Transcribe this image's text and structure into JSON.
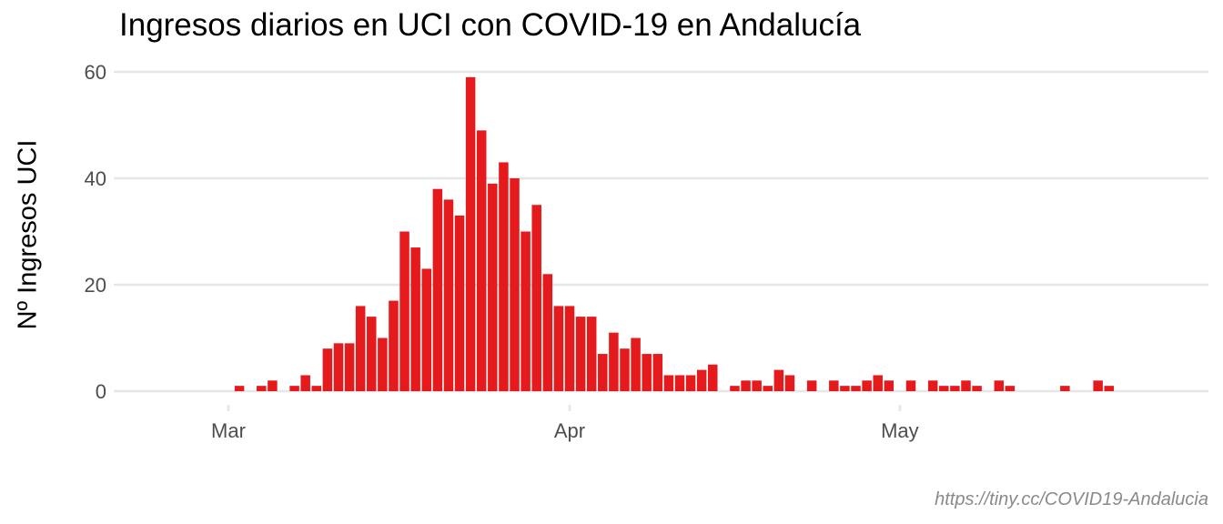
{
  "chart_data": {
    "type": "bar",
    "title": "Ingresos diarios en UCI con COVID-19 en Andalucía",
    "xlabel": "",
    "ylabel": "Nº Ingresos UCI",
    "caption": "https://tiny.cc/COVID19-Andalucia",
    "x_start_date": "2020-02-21",
    "x_end_date": "2020-05-27",
    "ylim": [
      0,
      60
    ],
    "y_ticks": [
      0,
      20,
      40,
      60
    ],
    "x_ticks": [
      {
        "date": "2020-03-01",
        "label": "Mar"
      },
      {
        "date": "2020-04-01",
        "label": "Apr"
      },
      {
        "date": "2020-05-01",
        "label": "May"
      }
    ],
    "bar_color": "#e41a1c",
    "grid": true,
    "dates": [
      "2020-02-21",
      "2020-02-22",
      "2020-02-23",
      "2020-02-24",
      "2020-02-25",
      "2020-02-26",
      "2020-02-27",
      "2020-02-28",
      "2020-02-29",
      "2020-03-01",
      "2020-03-02",
      "2020-03-03",
      "2020-03-04",
      "2020-03-05",
      "2020-03-06",
      "2020-03-07",
      "2020-03-08",
      "2020-03-09",
      "2020-03-10",
      "2020-03-11",
      "2020-03-12",
      "2020-03-13",
      "2020-03-14",
      "2020-03-15",
      "2020-03-16",
      "2020-03-17",
      "2020-03-18",
      "2020-03-19",
      "2020-03-20",
      "2020-03-21",
      "2020-03-22",
      "2020-03-23",
      "2020-03-24",
      "2020-03-25",
      "2020-03-26",
      "2020-03-27",
      "2020-03-28",
      "2020-03-29",
      "2020-03-30",
      "2020-03-31",
      "2020-04-01",
      "2020-04-02",
      "2020-04-03",
      "2020-04-04",
      "2020-04-05",
      "2020-04-06",
      "2020-04-07",
      "2020-04-08",
      "2020-04-09",
      "2020-04-10",
      "2020-04-11",
      "2020-04-12",
      "2020-04-13",
      "2020-04-14",
      "2020-04-15",
      "2020-04-16",
      "2020-04-17",
      "2020-04-18",
      "2020-04-19",
      "2020-04-20",
      "2020-04-21",
      "2020-04-22",
      "2020-04-23",
      "2020-04-24",
      "2020-04-25",
      "2020-04-26",
      "2020-04-27",
      "2020-04-28",
      "2020-04-29",
      "2020-04-30",
      "2020-05-01",
      "2020-05-02",
      "2020-05-03",
      "2020-05-04",
      "2020-05-05",
      "2020-05-06",
      "2020-05-07",
      "2020-05-08",
      "2020-05-09",
      "2020-05-10",
      "2020-05-11",
      "2020-05-12",
      "2020-05-13",
      "2020-05-14",
      "2020-05-15",
      "2020-05-16",
      "2020-05-17",
      "2020-05-18",
      "2020-05-19",
      "2020-05-20",
      "2020-05-21",
      "2020-05-22",
      "2020-05-23",
      "2020-05-24",
      "2020-05-25",
      "2020-05-26",
      "2020-05-27"
    ],
    "values": [
      0,
      0,
      0,
      0,
      0,
      0,
      0,
      0,
      0,
      0,
      1,
      0,
      1,
      2,
      0,
      1,
      3,
      1,
      8,
      9,
      9,
      16,
      14,
      10,
      17,
      30,
      27,
      23,
      38,
      36,
      33,
      59,
      49,
      39,
      43,
      40,
      30,
      35,
      22,
      16,
      16,
      14,
      14,
      7,
      11,
      8,
      10,
      7,
      7,
      3,
      3,
      3,
      4,
      5,
      0,
      1,
      2,
      2,
      1,
      4,
      3,
      0,
      2,
      0,
      2,
      1,
      1,
      2,
      3,
      2,
      0,
      2,
      0,
      2,
      1,
      1,
      2,
      1,
      0,
      2,
      1,
      0,
      0,
      0,
      0,
      1,
      0,
      0,
      2,
      1,
      0,
      0,
      0,
      0,
      0,
      0,
      0
    ]
  }
}
